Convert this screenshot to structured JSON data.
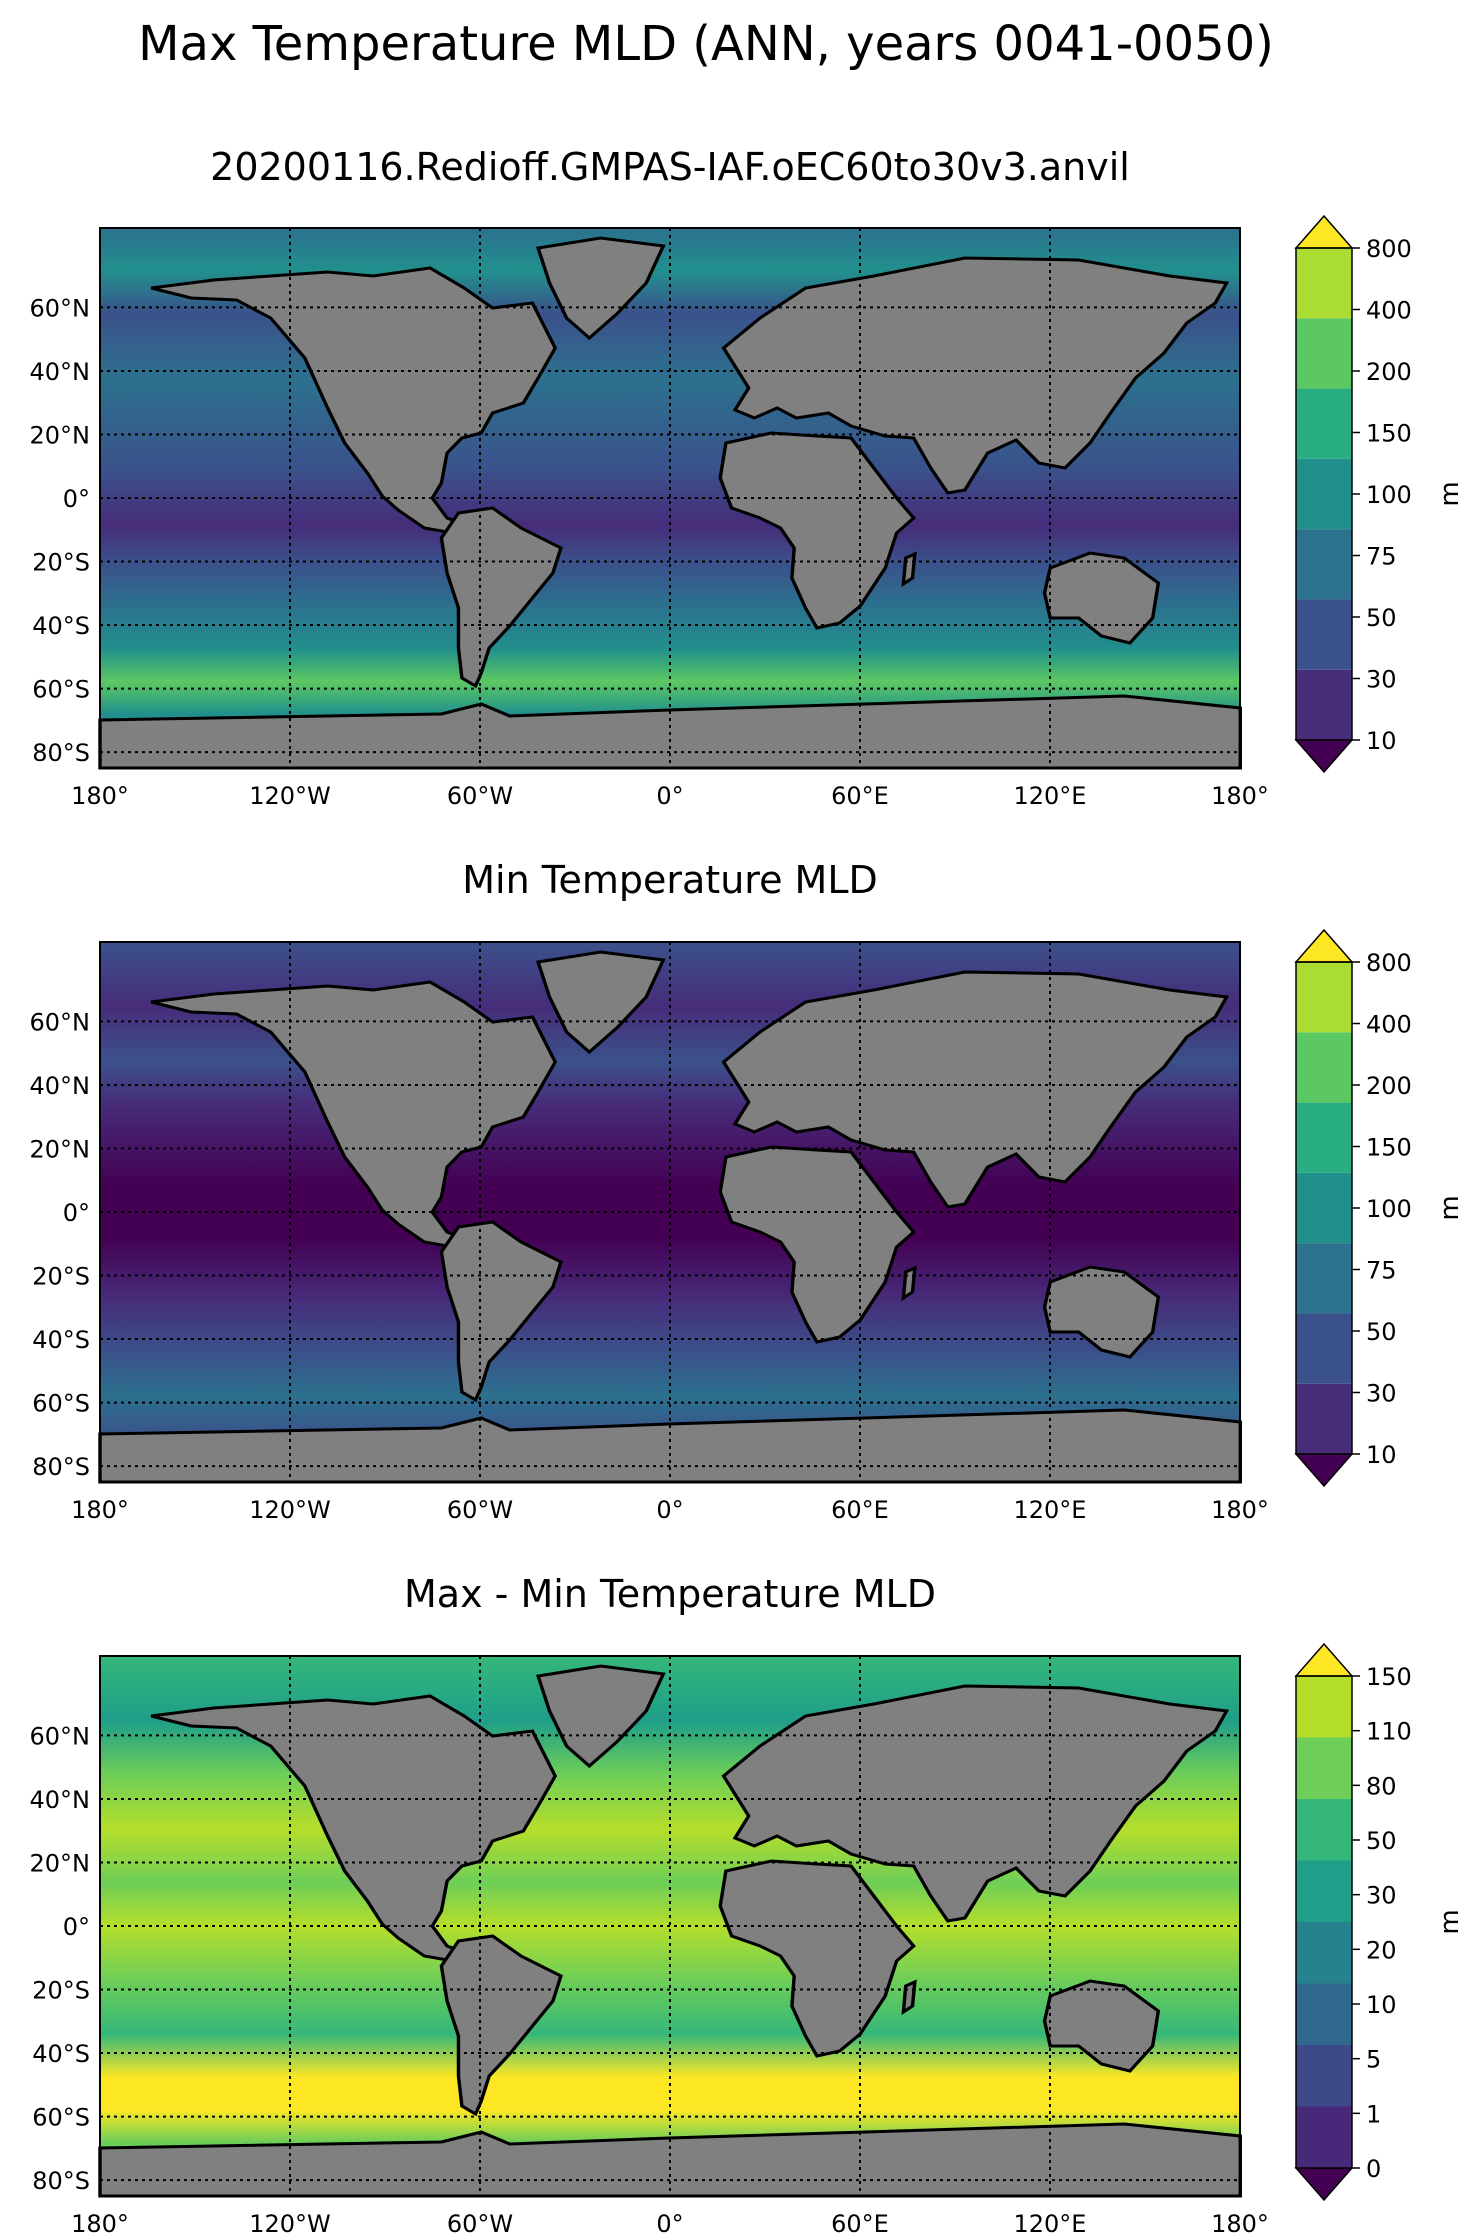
{
  "figure": {
    "title": "Max Temperature MLD (ANN, years 0041-0050)",
    "subtitle": "20200116.Redioff.GMPAS-IAF.oEC60to30v3.anvil"
  },
  "axes": {
    "lon_ticks": [
      "180°",
      "120°W",
      "60°W",
      "0°",
      "60°E",
      "120°E",
      "180°"
    ],
    "lat_ticks": [
      "60°N",
      "40°N",
      "20°N",
      "0°",
      "20°S",
      "40°S",
      "60°S",
      "80°S"
    ],
    "lat_values": [
      60,
      40,
      20,
      0,
      -20,
      -40,
      -60,
      -80
    ],
    "lon_values": [
      -180,
      -120,
      -60,
      0,
      60,
      120,
      180
    ],
    "lat_range": [
      -85,
      85
    ],
    "lon_range": [
      -180,
      180
    ],
    "grid": true
  },
  "colors": {
    "land": "#808080",
    "lakes": "#ffffff"
  },
  "panels": [
    {
      "title": "",
      "colorbar": {
        "label": "m",
        "ticks": [
          "10",
          "30",
          "50",
          "75",
          "100",
          "150",
          "200",
          "400",
          "800"
        ],
        "colors": [
          "#440154",
          "#472c7a",
          "#3b518b",
          "#2c718e",
          "#21908d",
          "#27ad81",
          "#5cc863",
          "#aadc32",
          "#fde725"
        ]
      }
    },
    {
      "title": "Min Temperature MLD",
      "colorbar": {
        "label": "m",
        "ticks": [
          "10",
          "30",
          "50",
          "75",
          "100",
          "150",
          "200",
          "400",
          "800"
        ],
        "colors": [
          "#440154",
          "#472c7a",
          "#3b518b",
          "#2c718e",
          "#21908d",
          "#27ad81",
          "#5cc863",
          "#aadc32",
          "#fde725"
        ]
      }
    },
    {
      "title": "Max - Min Temperature MLD",
      "colorbar": {
        "label": "m",
        "ticks": [
          "0",
          "1",
          "5",
          "10",
          "20",
          "30",
          "50",
          "80",
          "110",
          "150"
        ],
        "colors": [
          "#440154",
          "#482878",
          "#3e4989",
          "#31688e",
          "#26828e",
          "#1f9e89",
          "#35b779",
          "#6ece58",
          "#b5de2b",
          "#fde725"
        ]
      }
    }
  ]
}
